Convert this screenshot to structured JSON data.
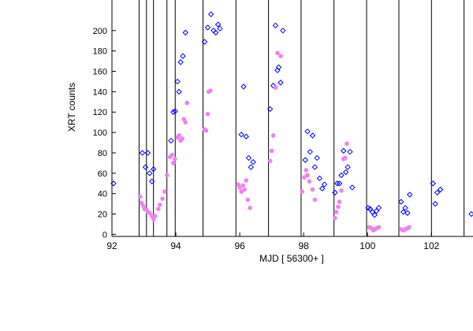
{
  "chart_data": {
    "type": "scatter",
    "title": "",
    "xlabel": "MJD [ 56300+ ]",
    "ylabel": "XRT counts",
    "xlim": [
      92,
      103.3
    ],
    "ylim": [
      -2,
      230
    ],
    "xticks": [
      92,
      94,
      96,
      98,
      100,
      102
    ],
    "yticks": [
      0,
      20,
      40,
      60,
      80,
      100,
      120,
      140,
      160,
      180,
      200
    ],
    "grid": false,
    "legend": "none",
    "vlines": [
      92.85,
      93.08,
      93.3,
      93.72,
      93.98,
      94.85,
      95.88,
      96.9,
      97.92,
      98.95,
      99.97,
      100.98,
      102.0,
      103.02
    ],
    "series": [
      {
        "marker": "open-diamond",
        "color": "#0000ff",
        "points": [
          [
            92.05,
            50
          ],
          [
            92.95,
            80
          ],
          [
            93.05,
            66
          ],
          [
            93.12,
            80
          ],
          [
            93.18,
            60
          ],
          [
            93.25,
            52
          ],
          [
            93.3,
            64
          ],
          [
            93.85,
            92
          ],
          [
            93.92,
            120
          ],
          [
            93.98,
            121
          ],
          [
            94.05,
            150
          ],
          [
            94.1,
            140
          ],
          [
            94.15,
            169
          ],
          [
            94.22,
            175
          ],
          [
            94.3,
            198
          ],
          [
            94.9,
            189
          ],
          [
            95.0,
            203
          ],
          [
            95.1,
            216
          ],
          [
            95.18,
            200
          ],
          [
            95.25,
            198
          ],
          [
            95.32,
            206
          ],
          [
            95.38,
            202
          ],
          [
            96.05,
            98
          ],
          [
            96.12,
            145
          ],
          [
            96.2,
            96
          ],
          [
            96.28,
            75
          ],
          [
            96.35,
            66
          ],
          [
            96.42,
            71
          ],
          [
            96.95,
            123
          ],
          [
            97.05,
            146
          ],
          [
            97.12,
            205
          ],
          [
            97.18,
            161
          ],
          [
            97.22,
            164
          ],
          [
            97.28,
            149
          ],
          [
            97.35,
            200
          ],
          [
            98.05,
            73
          ],
          [
            98.12,
            101
          ],
          [
            98.2,
            81
          ],
          [
            98.28,
            97
          ],
          [
            98.35,
            66
          ],
          [
            98.42,
            75
          ],
          [
            98.5,
            55
          ],
          [
            98.58,
            45
          ],
          [
            98.65,
            49
          ],
          [
            98.98,
            41
          ],
          [
            99.05,
            50
          ],
          [
            99.12,
            50
          ],
          [
            99.18,
            58
          ],
          [
            99.25,
            82
          ],
          [
            99.32,
            61
          ],
          [
            99.38,
            66
          ],
          [
            99.45,
            81
          ],
          [
            99.52,
            46
          ],
          [
            100.02,
            26
          ],
          [
            100.08,
            25
          ],
          [
            100.15,
            22
          ],
          [
            100.22,
            19
          ],
          [
            100.28,
            23
          ],
          [
            100.35,
            26
          ],
          [
            101.05,
            32
          ],
          [
            101.12,
            22
          ],
          [
            101.18,
            26
          ],
          [
            101.25,
            21
          ],
          [
            101.32,
            39
          ],
          [
            102.05,
            50
          ],
          [
            102.12,
            30
          ],
          [
            102.18,
            41
          ],
          [
            102.28,
            44
          ],
          [
            103.25,
            20
          ]
        ]
      },
      {
        "marker": "filled-circle",
        "color": "#ee82ee",
        "points": [
          [
            92.88,
            37
          ],
          [
            92.92,
            31
          ],
          [
            92.98,
            28
          ],
          [
            93.02,
            25
          ],
          [
            93.08,
            24
          ],
          [
            93.12,
            22
          ],
          [
            93.18,
            21
          ],
          [
            93.25,
            18
          ],
          [
            93.3,
            15
          ],
          [
            93.35,
            18
          ],
          [
            93.45,
            25
          ],
          [
            93.5,
            29
          ],
          [
            93.58,
            35
          ],
          [
            93.65,
            42
          ],
          [
            93.72,
            58
          ],
          [
            93.82,
            76
          ],
          [
            93.88,
            78
          ],
          [
            93.92,
            70
          ],
          [
            93.97,
            74
          ],
          [
            94.05,
            95
          ],
          [
            94.1,
            97
          ],
          [
            94.15,
            92
          ],
          [
            94.2,
            94
          ],
          [
            94.3,
            110
          ],
          [
            94.35,
            129
          ],
          [
            94.25,
            113
          ],
          [
            94.9,
            103
          ],
          [
            94.95,
            102
          ],
          [
            95.0,
            118
          ],
          [
            95.03,
            140
          ],
          [
            95.08,
            141
          ],
          [
            95.95,
            49
          ],
          [
            96.0,
            46
          ],
          [
            96.05,
            42
          ],
          [
            96.1,
            48
          ],
          [
            96.15,
            44
          ],
          [
            96.2,
            53
          ],
          [
            96.25,
            34
          ],
          [
            96.32,
            26
          ],
          [
            96.95,
            72
          ],
          [
            97.0,
            82
          ],
          [
            97.05,
            97
          ],
          [
            97.12,
            144
          ],
          [
            97.18,
            178
          ],
          [
            97.28,
            175
          ],
          [
            97.95,
            42
          ],
          [
            98.02,
            56
          ],
          [
            98.08,
            63
          ],
          [
            98.12,
            58
          ],
          [
            98.18,
            52
          ],
          [
            98.28,
            44
          ],
          [
            98.35,
            34
          ],
          [
            98.98,
            16
          ],
          [
            99.02,
            22
          ],
          [
            99.08,
            27
          ],
          [
            99.12,
            32
          ],
          [
            99.18,
            43
          ],
          [
            99.25,
            74
          ],
          [
            99.3,
            75
          ],
          [
            99.35,
            89
          ],
          [
            100.05,
            7
          ],
          [
            100.12,
            6
          ],
          [
            100.18,
            4
          ],
          [
            100.22,
            5
          ],
          [
            100.28,
            6
          ],
          [
            100.35,
            7
          ],
          [
            101.05,
            5
          ],
          [
            101.12,
            4
          ],
          [
            101.18,
            5
          ],
          [
            101.25,
            6
          ],
          [
            101.3,
            7
          ]
        ]
      }
    ]
  }
}
